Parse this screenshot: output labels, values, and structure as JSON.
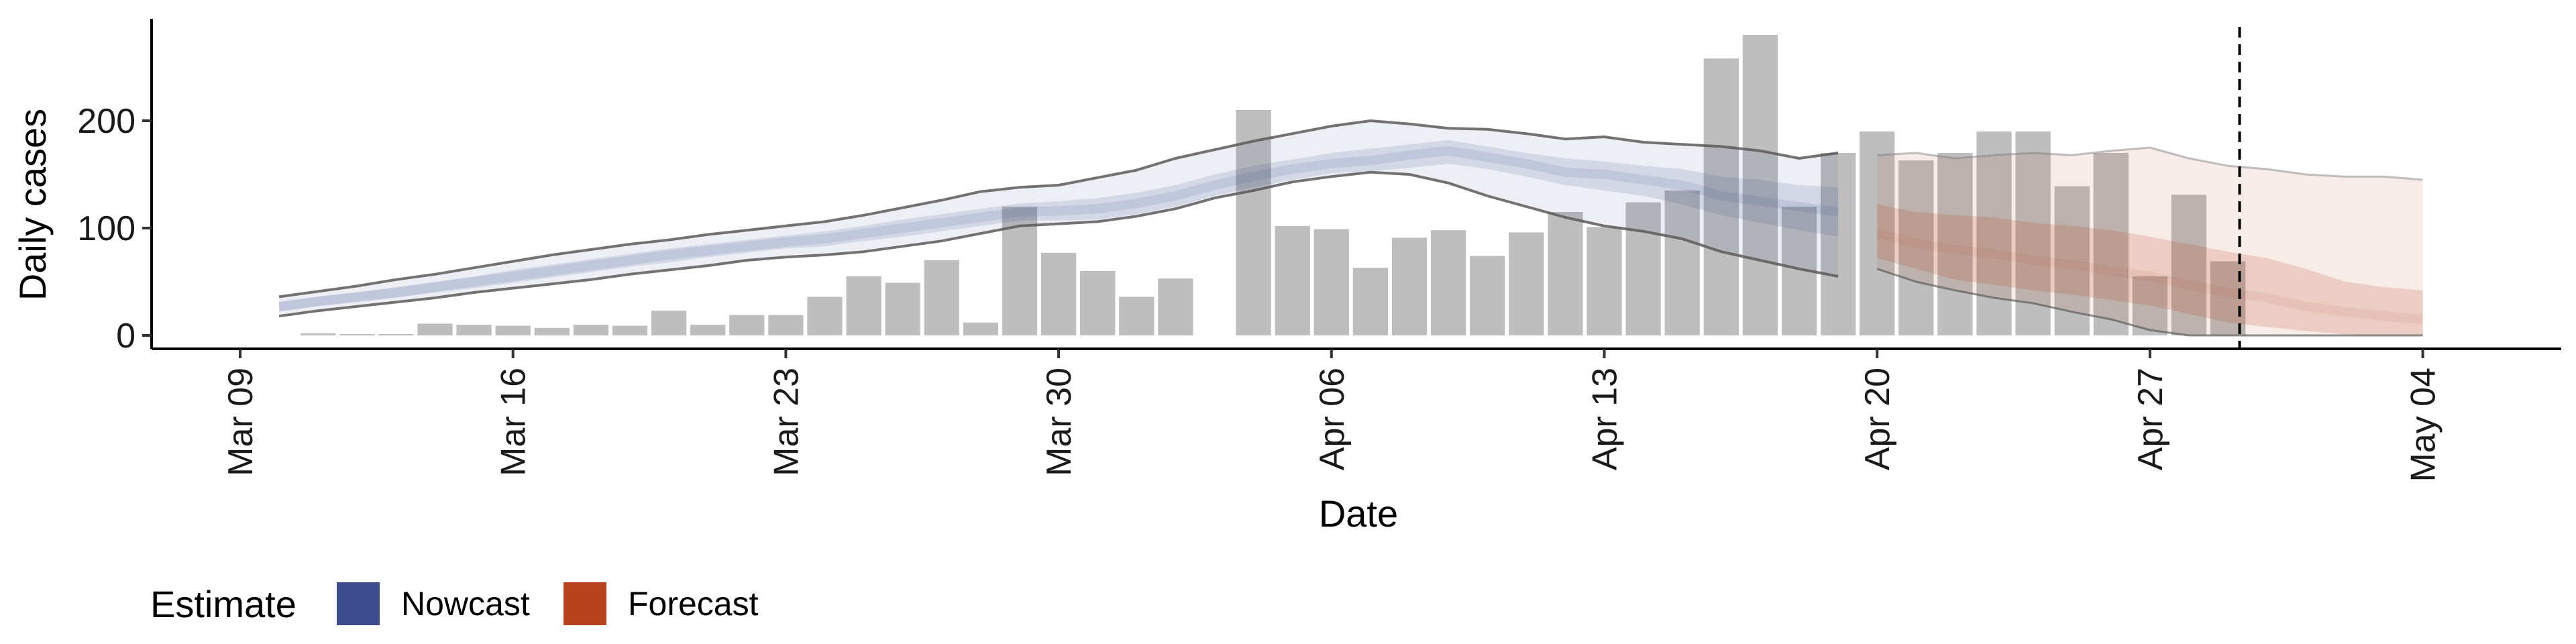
{
  "chart_data": {
    "type": "bar",
    "xlabel": "Date",
    "ylabel": "Daily cases",
    "ylim": [
      -12,
      295
    ],
    "y_ticks": [
      0,
      100,
      200
    ],
    "x_range_days": [
      -2.4,
      57
    ],
    "x_ticks": [
      {
        "label": "Mar 09",
        "day": 0
      },
      {
        "label": "Mar 16",
        "day": 7
      },
      {
        "label": "Mar 23",
        "day": 14
      },
      {
        "label": "Mar 30",
        "day": 21
      },
      {
        "label": "Apr 06",
        "day": 28
      },
      {
        "label": "Apr 13",
        "day": 35
      },
      {
        "label": "Apr 20",
        "day": 42
      },
      {
        "label": "Apr 27",
        "day": 49
      },
      {
        "label": "May 04",
        "day": 56
      }
    ],
    "bar_start_day": 2,
    "bar_values": [
      2,
      1,
      1,
      11,
      10,
      9,
      7,
      10,
      9,
      23,
      10,
      19,
      19,
      36,
      55,
      49,
      70,
      12,
      120,
      77,
      60,
      36,
      53,
      0,
      210,
      102,
      99,
      63,
      91,
      98,
      74,
      96,
      115,
      101,
      124,
      135,
      258,
      280,
      120,
      170,
      190,
      163,
      170,
      190,
      190,
      139,
      170,
      55,
      131,
      69
    ],
    "nowcast": {
      "name": "Nowcast",
      "color": "#3b4d8c",
      "day_start": 1,
      "median": [
        27,
        32,
        36,
        40,
        45,
        50,
        55,
        60,
        65,
        70,
        75,
        79,
        83,
        87,
        90,
        95,
        100,
        105,
        110,
        115,
        116,
        118,
        123,
        130,
        140,
        148,
        155,
        160,
        163,
        168,
        172,
        166,
        160,
        152,
        150,
        145,
        140,
        130,
        125,
        120,
        115
      ],
      "inner_upper": [
        31,
        36,
        40,
        45,
        50,
        55,
        61,
        66,
        71,
        76,
        81,
        85,
        89,
        93,
        97,
        102,
        108,
        113,
        118,
        123,
        125,
        128,
        133,
        140,
        150,
        158,
        164,
        170,
        174,
        178,
        182,
        176,
        170,
        165,
        162,
        158,
        155,
        148,
        145,
        140,
        138
      ],
      "inner_lower": [
        22,
        27,
        31,
        35,
        40,
        44,
        49,
        54,
        59,
        64,
        68,
        73,
        77,
        81,
        83,
        88,
        92,
        97,
        102,
        107,
        107,
        108,
        113,
        120,
        130,
        138,
        145,
        151,
        153,
        156,
        160,
        155,
        148,
        140,
        135,
        130,
        122,
        112,
        105,
        98,
        92
      ],
      "outer_upper": [
        36,
        41,
        46,
        52,
        57,
        63,
        69,
        75,
        80,
        85,
        89,
        94,
        98,
        102,
        106,
        112,
        119,
        126,
        134,
        138,
        140,
        147,
        154,
        165,
        173,
        181,
        188,
        195,
        200,
        197,
        193,
        192,
        188,
        183,
        185,
        180,
        178,
        176,
        172,
        165,
        170
      ],
      "outer_lower": [
        18,
        23,
        27,
        31,
        35,
        40,
        44,
        48,
        52,
        57,
        61,
        65,
        70,
        73,
        75,
        78,
        83,
        88,
        95,
        102,
        104,
        106,
        111,
        118,
        128,
        135,
        143,
        148,
        152,
        150,
        142,
        130,
        120,
        110,
        102,
        97,
        90,
        78,
        70,
        62,
        55
      ]
    },
    "forecast": {
      "name": "Forecast",
      "color": "#b5421a",
      "day_start": 42,
      "median": [
        95,
        86,
        80,
        76,
        70,
        66,
        60,
        55,
        47,
        40,
        35,
        27,
        22,
        18,
        15
      ],
      "inner_upper": [
        122,
        115,
        112,
        110,
        105,
        102,
        98,
        92,
        85,
        78,
        72,
        62,
        50,
        45,
        42
      ],
      "inner_lower": [
        72,
        62,
        52,
        47,
        42,
        38,
        33,
        28,
        20,
        12,
        8,
        4,
        1,
        0,
        0
      ],
      "outer_upper": [
        168,
        170,
        165,
        168,
        170,
        168,
        172,
        175,
        165,
        158,
        155,
        150,
        148,
        148,
        145
      ],
      "outer_lower": [
        62,
        50,
        42,
        35,
        30,
        22,
        15,
        5,
        0,
        0,
        0,
        0,
        0,
        0,
        0
      ]
    },
    "vline_day": 51.3,
    "legend": {
      "title": "Estimate",
      "items": [
        "Nowcast",
        "Forecast"
      ],
      "position": "bottom-left"
    }
  }
}
